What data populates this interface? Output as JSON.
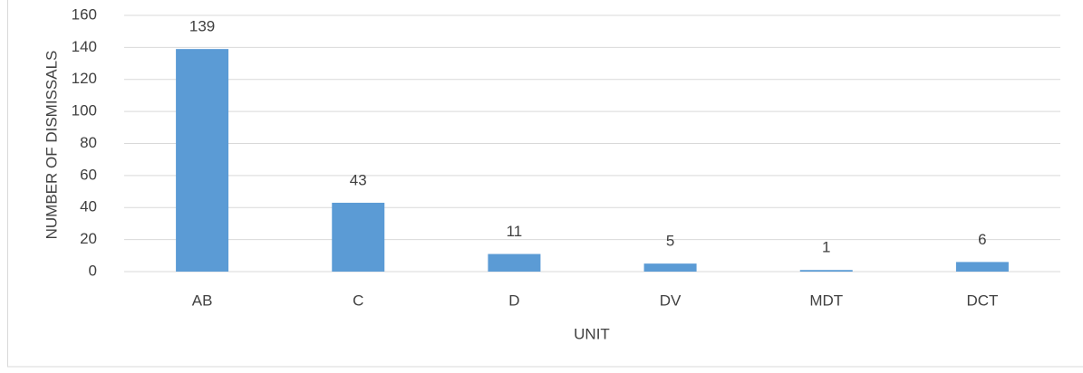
{
  "chart_data": {
    "type": "bar",
    "categories": [
      "AB",
      "C",
      "D",
      "DV",
      "MDT",
      "DCT"
    ],
    "values": [
      139,
      43,
      11,
      5,
      1,
      6
    ],
    "color": "#5b9bd5",
    "xlabel": "UNIT",
    "ylabel": "NUMBER OF DISMISSALS",
    "ylim": [
      0,
      160
    ],
    "yticks": [
      0,
      20,
      40,
      60,
      80,
      100,
      120,
      140,
      160
    ],
    "grid": true
  }
}
